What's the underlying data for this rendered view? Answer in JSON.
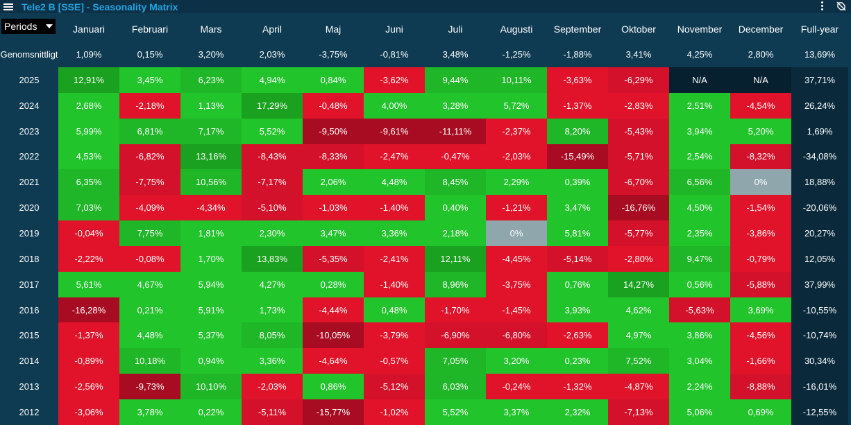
{
  "app": {
    "title": "Tele2 B [SSE] - Seasonality Matrix"
  },
  "colors": {
    "positive_light": "#22c42c",
    "positive_mid": "#1fb627",
    "positive_dark": "#1aa11f",
    "negative_light": "#e0132a",
    "negative_mid": "#d4112a",
    "negative_dark": "#a80c22",
    "zero": "#8fa6ad",
    "na": "#06202f"
  },
  "matrix": {
    "period_select": "Periods",
    "months": [
      "Januari",
      "Februari",
      "Mars",
      "April",
      "Maj",
      "Juni",
      "Juli",
      "Augusti",
      "September",
      "Oktober",
      "November",
      "December"
    ],
    "fullyear_label": "Full-year",
    "average": {
      "label": "Genomsnittligt",
      "values": [
        "1,09%",
        "0,15%",
        "3,20%",
        "2,03%",
        "-3,75%",
        "-0,81%",
        "3,48%",
        "-1,25%",
        "-1,88%",
        "3,41%",
        "4,25%",
        "2,80%"
      ],
      "fullyear": "13,69%"
    },
    "rows": [
      {
        "year": "2025",
        "values": [
          "12,91%",
          "3,45%",
          "6,23%",
          "4,94%",
          "0,84%",
          "-3,62%",
          "9,44%",
          "10,11%",
          "-3,63%",
          "-6,29%",
          "N/A",
          "N/A"
        ],
        "fullyear": "37,71%"
      },
      {
        "year": "2024",
        "values": [
          "2,68%",
          "-2,18%",
          "1,13%",
          "17,29%",
          "-0,48%",
          "4,00%",
          "3,28%",
          "5,72%",
          "-1,37%",
          "-2,83%",
          "2,51%",
          "-4,54%"
        ],
        "fullyear": "26,24%"
      },
      {
        "year": "2023",
        "values": [
          "5,99%",
          "6,81%",
          "7,17%",
          "5,52%",
          "-9,50%",
          "-9,61%",
          "-11,11%",
          "-2,37%",
          "8,20%",
          "-5,43%",
          "3,94%",
          "5,20%"
        ],
        "fullyear": "1,69%"
      },
      {
        "year": "2022",
        "values": [
          "4,53%",
          "-6,82%",
          "13,16%",
          "-8,43%",
          "-8,33%",
          "-2,47%",
          "-0,47%",
          "-2,03%",
          "-15,49%",
          "-5,71%",
          "2,54%",
          "-8,32%"
        ],
        "fullyear": "-34,08%"
      },
      {
        "year": "2021",
        "values": [
          "6,35%",
          "-7,75%",
          "10,56%",
          "-7,17%",
          "2,06%",
          "4,48%",
          "8,45%",
          "2,29%",
          "0,39%",
          "-6,70%",
          "6,56%",
          "0%"
        ],
        "fullyear": "18,88%"
      },
      {
        "year": "2020",
        "values": [
          "7,03%",
          "-4,09%",
          "-4,34%",
          "-5,10%",
          "-1,03%",
          "-1,40%",
          "0,40%",
          "-1,21%",
          "3,47%",
          "-16,76%",
          "4,50%",
          "-1,54%"
        ],
        "fullyear": "-20,06%"
      },
      {
        "year": "2019",
        "values": [
          "-0,04%",
          "7,75%",
          "1,81%",
          "2,30%",
          "3,47%",
          "3,36%",
          "2,18%",
          "0%",
          "5,81%",
          "-5,77%",
          "2,35%",
          "-3,86%"
        ],
        "fullyear": "20,27%"
      },
      {
        "year": "2018",
        "values": [
          "-2,22%",
          "-0,08%",
          "1,70%",
          "13,83%",
          "-5,35%",
          "-2,41%",
          "12,11%",
          "-4,45%",
          "-5,14%",
          "-2,80%",
          "9,47%",
          "-0,79%"
        ],
        "fullyear": "12,05%"
      },
      {
        "year": "2017",
        "values": [
          "5,61%",
          "4,67%",
          "5,94%",
          "4,27%",
          "0,28%",
          "-1,40%",
          "8,96%",
          "-3,75%",
          "0,76%",
          "14,27%",
          "0,56%",
          "-5,88%"
        ],
        "fullyear": "37,99%"
      },
      {
        "year": "2016",
        "values": [
          "-16,28%",
          "0,21%",
          "5,91%",
          "1,73%",
          "-4,44%",
          "0,48%",
          "-1,70%",
          "-1,45%",
          "3,93%",
          "4,62%",
          "-5,63%",
          "3,69%"
        ],
        "fullyear": "-10,55%"
      },
      {
        "year": "2015",
        "values": [
          "-1,37%",
          "4,48%",
          "5,37%",
          "8,05%",
          "-10,05%",
          "-3,79%",
          "-6,90%",
          "-6,80%",
          "-2,63%",
          "4,97%",
          "3,86%",
          "-4,56%"
        ],
        "fullyear": "-10,74%"
      },
      {
        "year": "2014",
        "values": [
          "-0,89%",
          "10,18%",
          "0,94%",
          "3,36%",
          "-4,64%",
          "-0,57%",
          "7,05%",
          "3,20%",
          "0,23%",
          "7,52%",
          "3,04%",
          "-1,66%"
        ],
        "fullyear": "30,34%"
      },
      {
        "year": "2013",
        "values": [
          "-2,56%",
          "-9,73%",
          "10,10%",
          "-2,03%",
          "0,86%",
          "-5,12%",
          "6,03%",
          "-0,24%",
          "-1,32%",
          "-4,87%",
          "2,24%",
          "-8,88%"
        ],
        "fullyear": "-16,01%"
      },
      {
        "year": "2012",
        "values": [
          "-3,06%",
          "3,78%",
          "0,22%",
          "-5,11%",
          "-15,77%",
          "-1,02%",
          "5,52%",
          "3,37%",
          "2,32%",
          "-7,13%",
          "5,06%",
          "0,69%"
        ],
        "fullyear": "-12,55%"
      }
    ]
  }
}
